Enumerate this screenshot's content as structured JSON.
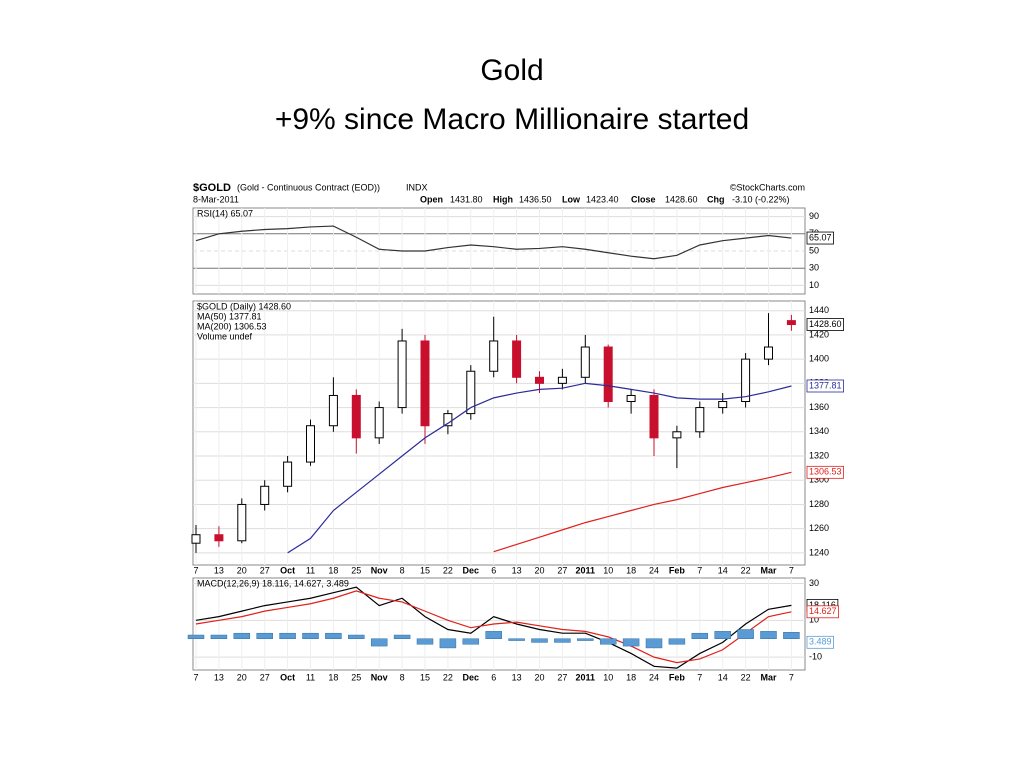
{
  "slide": {
    "title_line1": "Gold",
    "title_line2": "+9% since Macro Millionaire started"
  },
  "header": {
    "symbol": "$GOLD",
    "description": "(Gold - Continuous Contract (EOD))",
    "exchange": "INDX",
    "source": "©StockCharts.com",
    "date": "8-Mar-2011",
    "open_label": "Open",
    "open": "1431.80",
    "high_label": "High",
    "high": "1436.50",
    "low_label": "Low",
    "low": "1423.40",
    "close_label": "Close",
    "close": "1428.60",
    "chg_label": "Chg",
    "chg": "-3.10 (-0.22%)"
  },
  "chart_data": [
    {
      "type": "line",
      "label": "RSI(14) 65.07",
      "categories": [
        "7",
        "13",
        "20",
        "27",
        "Oct",
        "11",
        "18",
        "25",
        "Nov",
        "8",
        "15",
        "22",
        "Dec",
        "6",
        "13",
        "20",
        "27",
        "2011",
        "10",
        "18",
        "24",
        "Feb",
        "7",
        "14",
        "22",
        "Mar",
        "7"
      ],
      "series": [
        {
          "name": "RSI(14)",
          "color": "#333333",
          "end_label": "65.07",
          "values": [
            62,
            70,
            73,
            75,
            76,
            78,
            79,
            66,
            52,
            50,
            50,
            54,
            57,
            55,
            52,
            53,
            55,
            52,
            48,
            44,
            41,
            45,
            57,
            62,
            65,
            68,
            65.07
          ]
        }
      ],
      "ylim": [
        0,
        100
      ],
      "yticks": [
        10,
        30,
        50,
        70,
        90
      ],
      "grid": true
    },
    {
      "type": "candlestick",
      "categories": [
        "7",
        "13",
        "20",
        "27",
        "Oct",
        "11",
        "18",
        "25",
        "Nov",
        "8",
        "15",
        "22",
        "Dec",
        "6",
        "13",
        "20",
        "27",
        "2011",
        "10",
        "18",
        "24",
        "Feb",
        "7",
        "14",
        "22",
        "Mar",
        "7"
      ],
      "legend": [
        "$GOLD (Daily) 1428.60",
        "MA(50) 1377.81",
        "MA(200) 1306.53",
        "Volume undef"
      ],
      "candles": {
        "name": "$GOLD (Daily)",
        "up_color": "#000000",
        "down_color": "#c8102e",
        "end_label": "1428.60",
        "open": [
          1248,
          1255,
          1250,
          1280,
          1295,
          1315,
          1345,
          1370,
          1335,
          1360,
          1415,
          1345,
          1355,
          1390,
          1415,
          1385,
          1380,
          1385,
          1410,
          1365,
          1370,
          1335,
          1340,
          1360,
          1365,
          1400,
          1431.8
        ],
        "high": [
          1263,
          1262,
          1285,
          1300,
          1320,
          1350,
          1385,
          1375,
          1365,
          1425,
          1420,
          1358,
          1395,
          1435,
          1420,
          1390,
          1392,
          1420,
          1412,
          1375,
          1375,
          1345,
          1365,
          1372,
          1405,
          1438,
          1436.5
        ],
        "low": [
          1240,
          1245,
          1248,
          1275,
          1290,
          1312,
          1340,
          1322,
          1330,
          1355,
          1330,
          1338,
          1350,
          1385,
          1380,
          1372,
          1375,
          1380,
          1360,
          1355,
          1320,
          1310,
          1335,
          1355,
          1360,
          1395,
          1423.4
        ],
        "close": [
          1255,
          1250,
          1280,
          1295,
          1315,
          1345,
          1370,
          1335,
          1360,
          1415,
          1345,
          1355,
          1390,
          1415,
          1385,
          1380,
          1385,
          1410,
          1365,
          1370,
          1335,
          1340,
          1360,
          1365,
          1400,
          1410,
          1428.6
        ]
      },
      "series": [
        {
          "name": "MA(50)",
          "color": "#2b2b9a",
          "end_label": "1377.81",
          "values": [
            null,
            null,
            null,
            null,
            1240,
            1252,
            1275,
            1290,
            1305,
            1320,
            1335,
            1347,
            1360,
            1368,
            1372,
            1375,
            1376,
            1380,
            1378,
            1375,
            1372,
            1368,
            1367,
            1367,
            1369,
            1373,
            1377.81
          ]
        },
        {
          "name": "MA(200)",
          "color": "#e0201b",
          "end_label": "1306.53",
          "values": [
            null,
            null,
            null,
            null,
            null,
            null,
            null,
            null,
            null,
            null,
            null,
            null,
            null,
            1241,
            1247,
            1253,
            1259,
            1265,
            1270,
            1275,
            1280,
            1284,
            1289,
            1294,
            1298,
            1302,
            1306.53
          ]
        }
      ],
      "ylim": [
        1230,
        1448
      ],
      "yticks": [
        1240,
        1260,
        1280,
        1300,
        1320,
        1340,
        1360,
        1380,
        1400,
        1420,
        1440
      ],
      "grid": true
    },
    {
      "type": "line",
      "label": "MACD(12,26,9) 18.116, 14.627, 3.489",
      "categories": [
        "7",
        "13",
        "20",
        "27",
        "Oct",
        "11",
        "18",
        "25",
        "Nov",
        "8",
        "15",
        "22",
        "Dec",
        "6",
        "13",
        "20",
        "27",
        "2011",
        "10",
        "18",
        "24",
        "Feb",
        "7",
        "14",
        "22",
        "Mar",
        "7"
      ],
      "series": [
        {
          "name": "MACD",
          "color": "#000000",
          "end_label": "18.116",
          "values": [
            10,
            12,
            15,
            18,
            20,
            22,
            25,
            28,
            18,
            22,
            12,
            5,
            3,
            12,
            8,
            5,
            3,
            3,
            -2,
            -8,
            -15,
            -16,
            -8,
            -2,
            8,
            16,
            18.116
          ]
        },
        {
          "name": "Signal",
          "color": "#e0201b",
          "end_label": "14.627",
          "values": [
            8,
            10,
            12,
            15,
            17,
            19,
            22,
            26,
            22,
            20,
            15,
            10,
            6,
            8,
            9,
            7,
            5,
            4,
            1,
            -4,
            -10,
            -13,
            -11,
            -6,
            3,
            12,
            14.627
          ]
        },
        {
          "name": "Histogram",
          "type": "bar",
          "color": "#5a9bd5",
          "end_label": "3.489",
          "values": [
            2,
            2,
            3,
            3,
            3,
            3,
            3,
            2,
            -4,
            2,
            -3,
            -5,
            -3,
            4,
            -1,
            -2,
            -2,
            -1,
            -3,
            -4,
            -5,
            -3,
            3,
            4,
            5,
            4,
            3.489
          ]
        }
      ],
      "ylim": [
        -17,
        33
      ],
      "yticks": [
        -10,
        10,
        30
      ],
      "grid": true
    }
  ]
}
